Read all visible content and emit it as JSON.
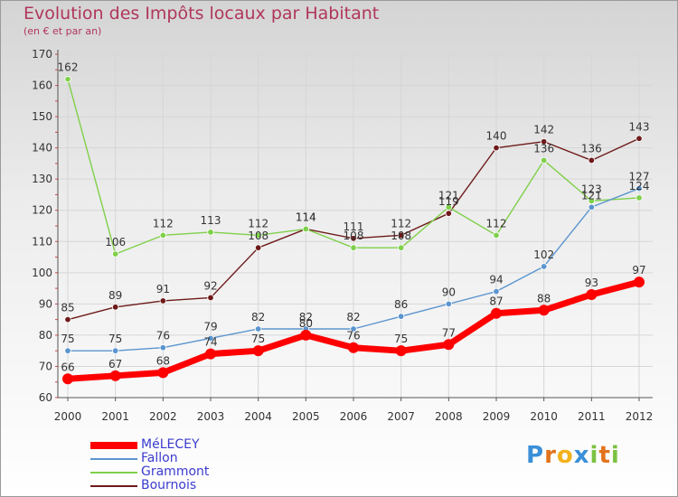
{
  "chart_data": {
    "type": "line",
    "title": "Evolution des Impôts locaux par Habitant",
    "subtitle": "(en € et par an)",
    "xlabel": "",
    "ylabel": "",
    "ylim": [
      60,
      170
    ],
    "y_ticks": [
      "60",
      "70",
      "80",
      "90",
      "100",
      "110",
      "120",
      "130",
      "140",
      "150",
      "160",
      "170"
    ],
    "categories": [
      "2000",
      "2001",
      "2002",
      "2003",
      "2004",
      "2005",
      "2006",
      "2007",
      "2008",
      "2009",
      "2010",
      "2011",
      "2012"
    ],
    "grid": true,
    "legend_position": "bottom-left",
    "series": [
      {
        "name": "Bournois",
        "color": "#6e1a1a",
        "values": [
          85,
          89,
          91,
          92,
          108,
          114,
          111,
          112,
          119,
          140,
          142,
          136,
          143
        ]
      },
      {
        "name": "Grammont",
        "color": "#7fd04a",
        "values": [
          162,
          106,
          112,
          113,
          112,
          114,
          108,
          108,
          121,
          112,
          136,
          123,
          124
        ]
      },
      {
        "name": "Fallon",
        "color": "#5b95cf",
        "values": [
          75,
          75,
          76,
          79,
          82,
          82,
          82,
          86,
          90,
          94,
          102,
          121,
          127
        ]
      },
      {
        "name": "MéLECEY",
        "color": "#ff0000",
        "values": [
          66,
          67,
          68,
          74,
          75,
          80,
          76,
          75,
          77,
          87,
          88,
          93,
          97
        ]
      }
    ]
  },
  "legend": [
    {
      "label": "MéLECEY",
      "color": "#ff0000"
    },
    {
      "label": "Fallon",
      "color": "#5b95cf"
    },
    {
      "label": "Grammont",
      "color": "#7fd04a"
    },
    {
      "label": "Bournois",
      "color": "#6e1a1a"
    }
  ],
  "logo": {
    "letters": [
      "P",
      "r",
      "o",
      "x",
      "i",
      "t",
      "i"
    ],
    "colors": [
      "#3a8fd8",
      "#e2731c",
      "#f2b21b",
      "#3a8fd8",
      "#7cc242",
      "#e2731c",
      "#7cc242"
    ]
  }
}
